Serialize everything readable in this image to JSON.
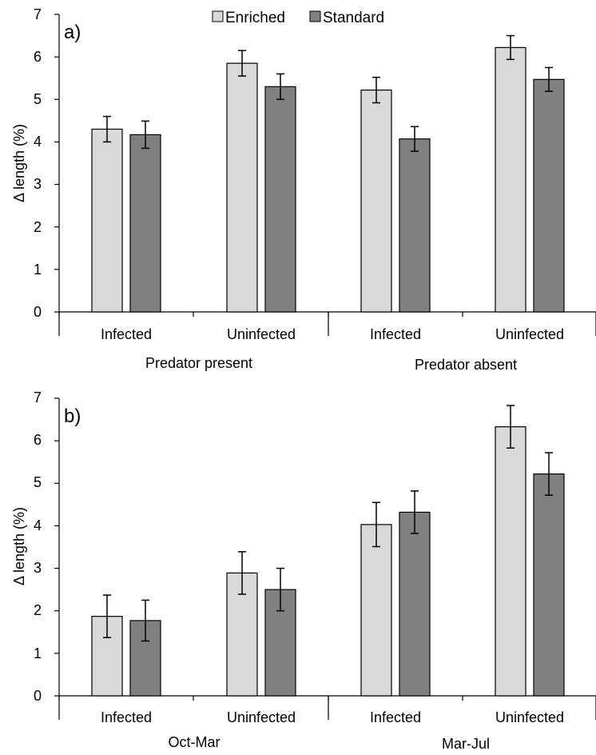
{
  "colors": {
    "enriched": "#d9d9d9",
    "standard": "#808080",
    "stroke": "#000000"
  },
  "legend": [
    "Enriched",
    "Standard"
  ],
  "chart_data": [
    {
      "type": "bar",
      "panel_label": "a)",
      "ylabel": "Δ length (%)",
      "ylim": [
        0,
        7
      ],
      "yticks": [
        "0",
        "1",
        "2",
        "3",
        "4",
        "5",
        "6",
        "7"
      ],
      "categories": [
        "Infected",
        "Uninfected",
        "Infected",
        "Uninfected"
      ],
      "groups": [
        "Predator present",
        "Predator absent"
      ],
      "series": [
        {
          "name": "Enriched",
          "values": [
            4.3,
            5.85,
            5.22,
            6.22
          ],
          "errors": [
            0.3,
            0.3,
            0.3,
            0.28
          ]
        },
        {
          "name": "Standard",
          "values": [
            4.17,
            5.3,
            4.07,
            5.47
          ],
          "errors": [
            0.32,
            0.3,
            0.29,
            0.28
          ]
        }
      ],
      "legend_position": "top-center",
      "grid": false
    },
    {
      "type": "bar",
      "panel_label": "b)",
      "ylabel": "Δ length (%)",
      "ylim": [
        0,
        7
      ],
      "yticks": [
        "0",
        "1",
        "2",
        "3",
        "4",
        "5",
        "6",
        "7"
      ],
      "categories": [
        "Infected",
        "Uninfected",
        "Infected",
        "Uninfected"
      ],
      "groups": [
        "Oct-Mar",
        "Mar-Jul"
      ],
      "series": [
        {
          "name": "Enriched",
          "values": [
            1.87,
            2.89,
            4.03,
            6.33
          ],
          "errors": [
            0.5,
            0.5,
            0.52,
            0.5
          ]
        },
        {
          "name": "Standard",
          "values": [
            1.77,
            2.5,
            4.32,
            5.22
          ],
          "errors": [
            0.48,
            0.5,
            0.5,
            0.5
          ]
        }
      ],
      "grid": false
    }
  ]
}
